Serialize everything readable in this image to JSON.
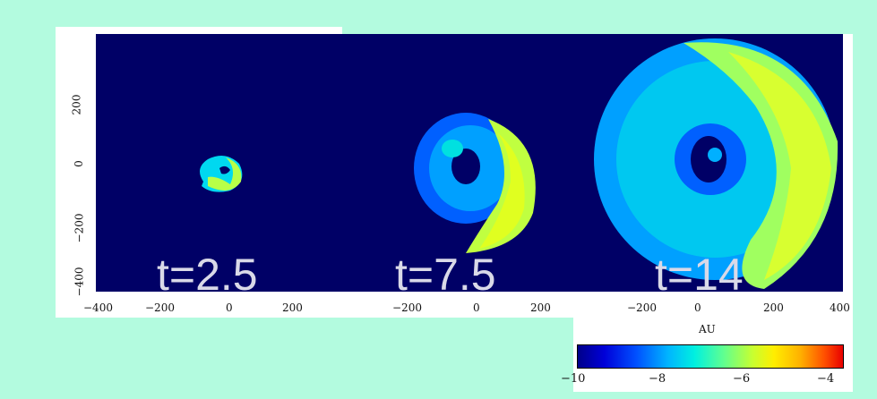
{
  "panels": [
    {
      "time_label": "t=2.5"
    },
    {
      "time_label": "t=7.5"
    },
    {
      "time_label": "t=14"
    }
  ],
  "x_ticks_panel1": [
    "−400",
    "−200",
    "0",
    "200"
  ],
  "x_ticks_panel2": [
    "−200",
    "0",
    "200"
  ],
  "x_ticks_panel3": [
    "−200",
    "0",
    "200",
    "400"
  ],
  "y_ticks": [
    "200",
    "0",
    "−200",
    "−400"
  ],
  "x_axis_unit": "AU",
  "colorbar": {
    "ticks": [
      "−10",
      "−8",
      "−6",
      "−4"
    ],
    "range": [
      -10,
      -4
    ],
    "colormap": "jet"
  },
  "colors": {
    "background": "#b3fbdf",
    "plot_background": "#000066"
  }
}
